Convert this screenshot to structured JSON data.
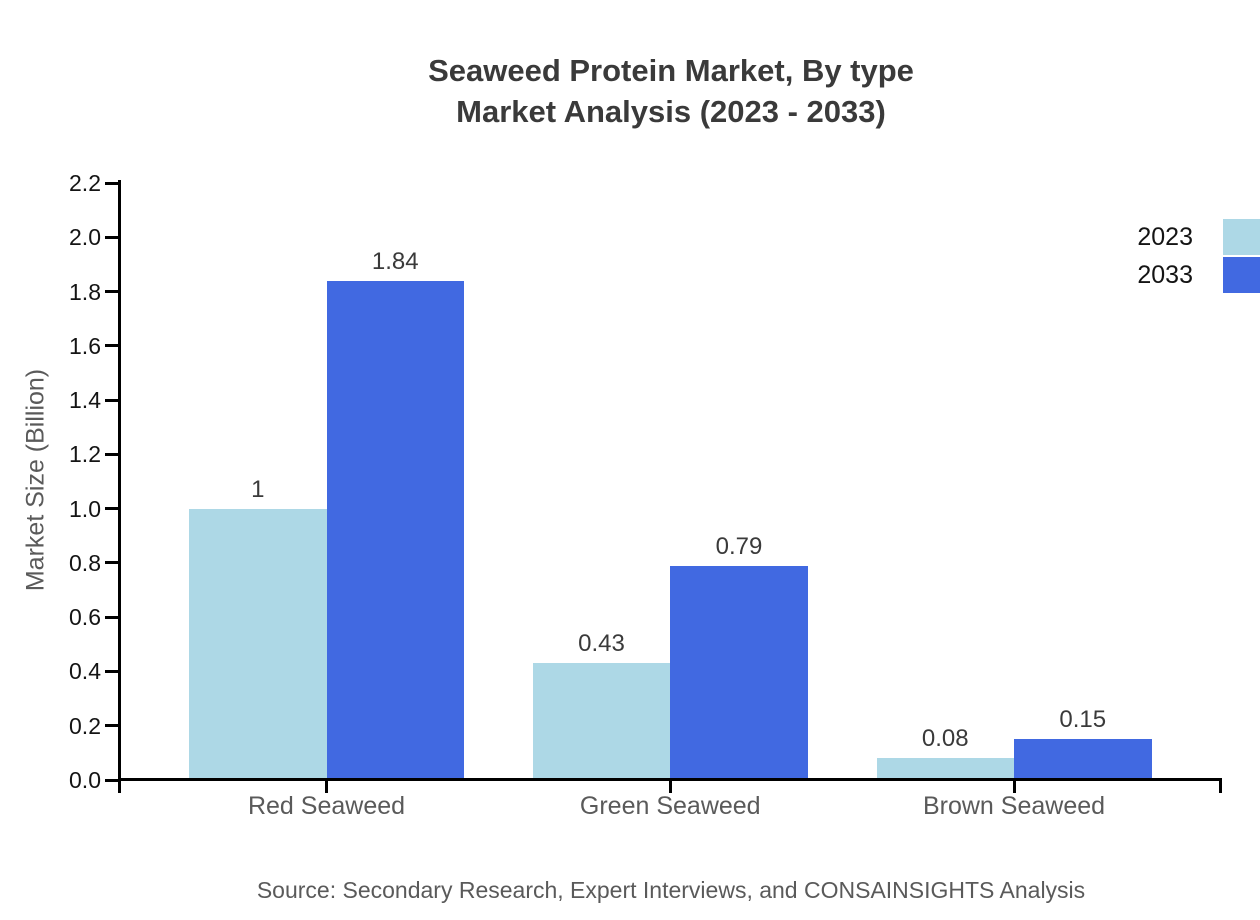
{
  "title": {
    "line1": "Seaweed Protein Market, By type",
    "line2": "Market Analysis (2023 - 2033)"
  },
  "source": "Source: Secondary Research, Expert Interviews, and CONSAINSIGHTS Analysis",
  "chart_data": {
    "type": "bar",
    "categories": [
      "Red Seaweed",
      "Green Seaweed",
      "Brown Seaweed"
    ],
    "series": [
      {
        "name": "2023",
        "color": "#add8e6",
        "values": [
          1,
          0.43,
          0.08
        ],
        "value_labels": [
          "1",
          "0.43",
          "0.08"
        ]
      },
      {
        "name": "2033",
        "color": "#4169e1",
        "values": [
          1.84,
          0.79,
          0.15
        ],
        "value_labels": [
          "1.84",
          "0.79",
          "0.15"
        ]
      }
    ],
    "ylabel": "Market Size (Billion)",
    "xlabel": "",
    "ylim": [
      0,
      2.2
    ],
    "ytick_step": 0.2,
    "ytick_labels": [
      "0.0",
      "0.2",
      "0.4",
      "0.6",
      "0.8",
      "1.0",
      "1.2",
      "1.4",
      "1.6",
      "1.8",
      "2.0",
      "2.2"
    ],
    "grid": false,
    "legend_position": "top-right",
    "value_labels_shown": true
  }
}
